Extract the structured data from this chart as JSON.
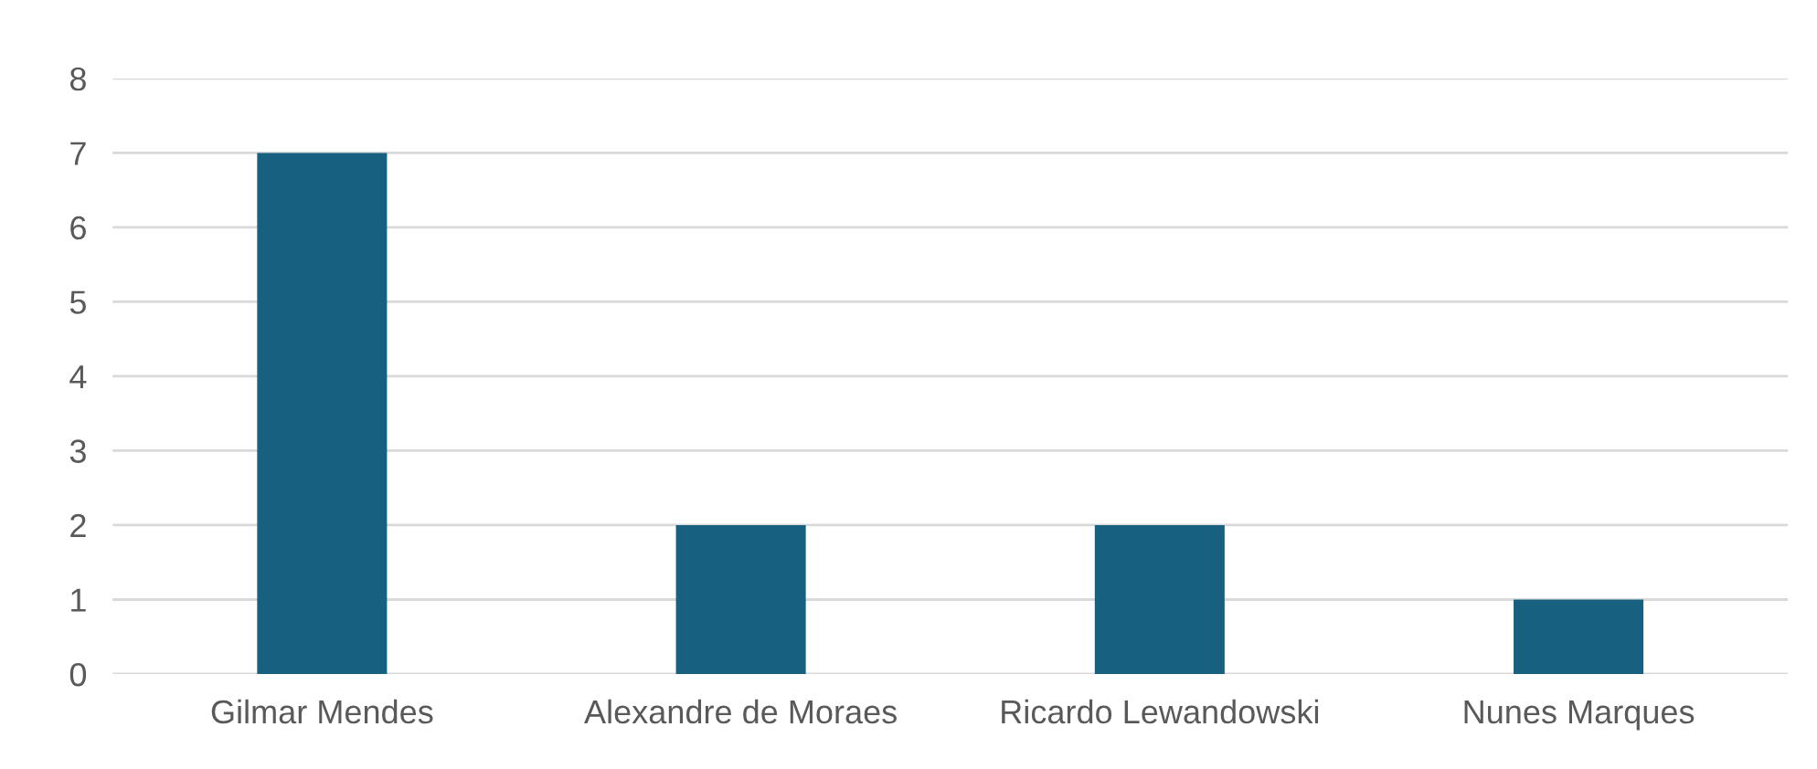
{
  "chart_data": {
    "type": "bar",
    "categories": [
      "Gilmar Mendes",
      "Alexandre de Moraes",
      "Ricardo Lewandowski",
      "Nunes Marques"
    ],
    "values": [
      7,
      2,
      2,
      1
    ],
    "color": "#17607f",
    "ylim": [
      0,
      8
    ],
    "yticks": [
      0,
      1,
      2,
      3,
      4,
      5,
      6,
      7,
      8
    ],
    "grid": "y",
    "legend": false
  }
}
